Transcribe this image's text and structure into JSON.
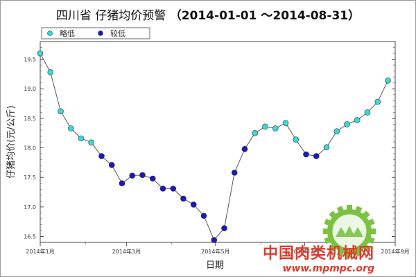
{
  "chart_data": {
    "type": "scatter",
    "title_main": "四川省 仔猪均价预警",
    "title_range": "（2014-01-01 ～2014-08-31）",
    "xlabel": "日期",
    "ylabel": "仔猪均价(元/公斤)",
    "ylim": [
      16.4,
      19.8
    ],
    "y_ticks": [
      "16.5",
      "17.0",
      "17.5",
      "18.0",
      "18.5",
      "19.0",
      "19.5"
    ],
    "x_ticks": [
      {
        "label": "2014年1月",
        "date": "2014-01-01"
      },
      {
        "label": "2014年3月",
        "date": "2014-03-01"
      },
      {
        "label": "2014年5月",
        "date": "2014-05-01"
      },
      {
        "label": "2014年7月",
        "date": "2014-07-01"
      },
      {
        "label": "2014年9月",
        "date": "2014-09-01"
      }
    ],
    "xlim": [
      "2014-01-01",
      "2014-09-01"
    ],
    "grid": false,
    "legend_position": "top-left",
    "legend": [
      {
        "key": "low",
        "label": "略低",
        "color": "#3ad8d8"
      },
      {
        "key": "lower",
        "label": "较低",
        "color": "#1a1ab8"
      }
    ],
    "line_color": "#555555",
    "points": [
      {
        "date": "2014-01-01",
        "value": 19.6,
        "status": "low"
      },
      {
        "date": "2014-01-08",
        "value": 19.28,
        "status": "low"
      },
      {
        "date": "2014-01-15",
        "value": 18.62,
        "status": "low"
      },
      {
        "date": "2014-01-22",
        "value": 18.33,
        "status": "low"
      },
      {
        "date": "2014-01-29",
        "value": 18.16,
        "status": "low"
      },
      {
        "date": "2014-02-05",
        "value": 18.09,
        "status": "low"
      },
      {
        "date": "2014-02-12",
        "value": 17.86,
        "status": "lower"
      },
      {
        "date": "2014-02-19",
        "value": 17.71,
        "status": "lower"
      },
      {
        "date": "2014-02-26",
        "value": 17.4,
        "status": "lower"
      },
      {
        "date": "2014-03-05",
        "value": 17.53,
        "status": "lower"
      },
      {
        "date": "2014-03-12",
        "value": 17.54,
        "status": "lower"
      },
      {
        "date": "2014-03-19",
        "value": 17.48,
        "status": "lower"
      },
      {
        "date": "2014-03-26",
        "value": 17.31,
        "status": "lower"
      },
      {
        "date": "2014-04-02",
        "value": 17.31,
        "status": "lower"
      },
      {
        "date": "2014-04-09",
        "value": 17.14,
        "status": "lower"
      },
      {
        "date": "2014-04-16",
        "value": 17.04,
        "status": "lower"
      },
      {
        "date": "2014-04-23",
        "value": 16.85,
        "status": "lower"
      },
      {
        "date": "2014-04-30",
        "value": 16.44,
        "status": "lower"
      },
      {
        "date": "2014-05-07",
        "value": 16.64,
        "status": "lower"
      },
      {
        "date": "2014-05-14",
        "value": 17.58,
        "status": "lower"
      },
      {
        "date": "2014-05-21",
        "value": 17.98,
        "status": "lower"
      },
      {
        "date": "2014-05-28",
        "value": 18.25,
        "status": "low"
      },
      {
        "date": "2014-06-04",
        "value": 18.36,
        "status": "low"
      },
      {
        "date": "2014-06-11",
        "value": 18.33,
        "status": "low"
      },
      {
        "date": "2014-06-18",
        "value": 18.42,
        "status": "low"
      },
      {
        "date": "2014-06-25",
        "value": 18.14,
        "status": "low"
      },
      {
        "date": "2014-07-02",
        "value": 17.89,
        "status": "lower"
      },
      {
        "date": "2014-07-09",
        "value": 17.86,
        "status": "lower"
      },
      {
        "date": "2014-07-16",
        "value": 18.01,
        "status": "low"
      },
      {
        "date": "2014-07-23",
        "value": 18.28,
        "status": "low"
      },
      {
        "date": "2014-07-30",
        "value": 18.4,
        "status": "low"
      },
      {
        "date": "2014-08-06",
        "value": 18.47,
        "status": "low"
      },
      {
        "date": "2014-08-13",
        "value": 18.6,
        "status": "low"
      },
      {
        "date": "2014-08-20",
        "value": 18.78,
        "status": "low"
      },
      {
        "date": "2014-08-27",
        "value": 19.14,
        "status": "low"
      }
    ]
  },
  "watermark": {
    "name_cn": "中国肉类机械网",
    "url": "www.mpmpc.org",
    "logo_text": "MPMPC",
    "color": "#e03a2a",
    "logo_color": "#7cc242"
  }
}
